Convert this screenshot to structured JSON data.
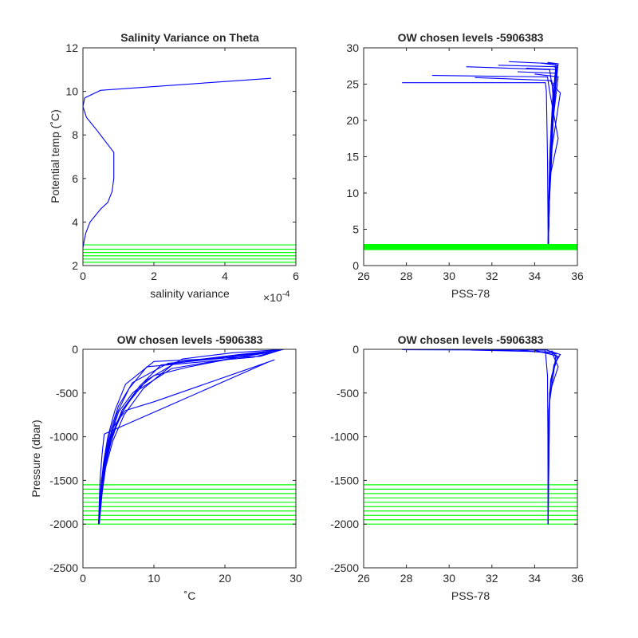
{
  "figure": {
    "background": "#ffffff",
    "axes_color": "#262626",
    "profile_color": "#0000ff",
    "level_color": "#00ff00"
  },
  "chart_data": [
    {
      "type": "line",
      "title": "Salinity Variance on Theta",
      "xlabel": "salinity variance",
      "ylabel": "Potential temp (˚C)",
      "xlim": [
        0,
        6
      ],
      "ylim": [
        2,
        12
      ],
      "xticks": [
        0,
        2,
        4,
        6
      ],
      "yticks": [
        2,
        4,
        6,
        8,
        10,
        12
      ],
      "x_exponent_label": "×10",
      "x_exponent_power": "-4",
      "series": [
        {
          "x": [
            5.3,
            0.5,
            0.05,
            0.0,
            0.1,
            0.4,
            0.87,
            0.87,
            0.82,
            0.7,
            0.5,
            0.2,
            0.08,
            0.03,
            0.0
          ],
          "y": [
            10.6,
            10.05,
            9.7,
            9.3,
            8.8,
            8.2,
            7.2,
            6.0,
            5.4,
            4.9,
            4.6,
            4.0,
            3.5,
            3.1,
            2.8
          ]
        }
      ],
      "levels": [
        2.15,
        2.3,
        2.45,
        2.6,
        2.75,
        2.95
      ]
    },
    {
      "type": "line",
      "title": "OW chosen levels -5906383",
      "xlabel": "PSS-78",
      "ylabel": "",
      "xlim": [
        26,
        36
      ],
      "ylim": [
        0,
        30
      ],
      "xticks": [
        26,
        28,
        30,
        32,
        34,
        36
      ],
      "yticks": [
        0,
        5,
        10,
        15,
        20,
        25,
        30
      ],
      "profiles": [
        {
          "x": [
            27.8,
            34.5,
            34.55,
            34.6,
            34.62,
            34.63
          ],
          "y": [
            25.2,
            25.2,
            24.0,
            15.0,
            8.0,
            3.0
          ]
        },
        {
          "x": [
            29.2,
            34.6,
            34.7,
            35.1,
            34.7,
            34.65,
            34.63
          ],
          "y": [
            26.2,
            26.0,
            24.0,
            17.5,
            12.0,
            6.0,
            3.0
          ]
        },
        {
          "x": [
            30.8,
            34.7,
            34.8,
            35.2,
            34.75,
            34.65,
            34.63
          ],
          "y": [
            27.4,
            27.0,
            25.0,
            23.8,
            15.0,
            6.0,
            3.0
          ]
        },
        {
          "x": [
            31.2,
            34.8,
            34.9,
            34.8,
            34.7,
            34.64
          ],
          "y": [
            25.9,
            25.5,
            22.0,
            16.0,
            10.0,
            3.0
          ]
        },
        {
          "x": [
            32.3,
            35.0,
            34.9,
            34.8,
            34.7,
            34.64
          ],
          "y": [
            27.6,
            27.4,
            24.0,
            18.0,
            10.0,
            3.0
          ]
        },
        {
          "x": [
            32.8,
            35.0,
            34.9,
            34.8,
            34.7,
            34.64
          ],
          "y": [
            28.1,
            27.8,
            24.5,
            19.0,
            10.0,
            3.0
          ]
        },
        {
          "x": [
            33.2,
            35.0,
            34.95,
            34.75,
            34.66,
            34.64
          ],
          "y": [
            26.7,
            26.5,
            23.0,
            17.0,
            9.0,
            3.0
          ]
        },
        {
          "x": [
            33.6,
            35.05,
            34.9,
            34.8,
            34.68,
            34.64
          ],
          "y": [
            27.2,
            27.0,
            22.5,
            15.0,
            8.0,
            3.0
          ]
        },
        {
          "x": [
            34.0,
            35.1,
            34.9,
            34.7,
            34.66,
            34.64
          ],
          "y": [
            26.4,
            26.0,
            21.0,
            14.0,
            7.0,
            3.0
          ]
        },
        {
          "x": [
            34.3,
            35.05,
            34.85,
            34.72,
            34.65,
            34.64
          ],
          "y": [
            27.9,
            27.6,
            23.5,
            16.0,
            8.0,
            3.0
          ]
        },
        {
          "x": [
            34.6,
            35.1,
            35.0,
            34.8,
            34.68,
            34.64
          ],
          "y": [
            28.0,
            27.8,
            25.0,
            19.0,
            9.0,
            3.0
          ]
        },
        {
          "x": [
            34.7,
            34.9,
            34.85,
            34.7,
            34.66,
            34.64
          ],
          "y": [
            25.5,
            25.0,
            22.0,
            14.0,
            7.0,
            3.0
          ]
        },
        {
          "x": [
            34.9,
            35.05,
            34.8,
            34.7,
            34.65,
            34.64
          ],
          "y": [
            27.5,
            27.0,
            20.0,
            13.0,
            6.0,
            3.0
          ]
        }
      ],
      "levels": [
        2.2,
        2.3,
        2.4,
        2.5,
        2.6,
        2.7,
        2.8,
        2.9
      ]
    },
    {
      "type": "line",
      "title": "OW chosen levels -5906383",
      "xlabel": "˚C",
      "ylabel": "Pressure (dbar)",
      "xlim": [
        0,
        30
      ],
      "ylim": [
        -2500,
        0
      ],
      "xticks": [
        0,
        10,
        20,
        30
      ],
      "yticks": [
        -2500,
        -2000,
        -1500,
        -1000,
        -500,
        0
      ],
      "profiles": [
        {
          "x": [
            28.0,
            25.0,
            10.0,
            6.0,
            4.5,
            3.5,
            2.9,
            2.5,
            2.2
          ],
          "y": [
            -5,
            -80,
            -140,
            -400,
            -700,
            -1000,
            -1300,
            -1600,
            -2000
          ]
        },
        {
          "x": [
            27.5,
            20.0,
            12.0,
            7.0,
            5.0,
            3.8,
            3.0,
            2.6,
            2.25
          ],
          "y": [
            -10,
            -100,
            -160,
            -380,
            -650,
            -950,
            -1250,
            -1550,
            -1980
          ]
        },
        {
          "x": [
            27.0,
            18.0,
            11.0,
            8.0,
            5.5,
            4.0,
            3.1,
            2.6,
            2.25
          ],
          "y": [
            -15,
            -110,
            -180,
            -420,
            -700,
            -1000,
            -1300,
            -1600,
            -1990
          ]
        },
        {
          "x": [
            28.2,
            22.0,
            13.0,
            8.5,
            5.8,
            4.2,
            3.2,
            2.7,
            2.3
          ],
          "y": [
            -5,
            -60,
            -150,
            -450,
            -750,
            -1050,
            -1350,
            -1650,
            -1995
          ]
        },
        {
          "x": [
            26.5,
            15.0,
            10.0,
            7.0,
            5.0,
            3.9,
            3.0,
            2.6,
            2.25
          ],
          "y": [
            -20,
            -200,
            -300,
            -500,
            -720,
            -1000,
            -1300,
            -1600,
            -1990
          ]
        },
        {
          "x": [
            27.8,
            24.0,
            9.0,
            6.5,
            4.8,
            3.7,
            3.0,
            2.5,
            2.2
          ],
          "y": [
            -10,
            -90,
            -200,
            -450,
            -730,
            -1030,
            -1330,
            -1630,
            -1995
          ]
        },
        {
          "x": [
            27.0,
            10.0,
            6.0,
            4.2,
            3.2,
            2.6,
            2.25
          ],
          "y": [
            -120,
            -600,
            -700,
            -900,
            -1200,
            -1500,
            -1990
          ]
        },
        {
          "x": [
            26.0,
            3.0,
            2.7,
            2.4,
            2.2
          ],
          "y": [
            -150,
            -970,
            -1200,
            -1500,
            -2000
          ]
        },
        {
          "x": [
            28.5,
            21.0,
            14.0,
            9.0,
            6.0,
            4.3,
            3.3,
            2.7,
            2.3
          ],
          "y": [
            0,
            -40,
            -110,
            -350,
            -650,
            -950,
            -1250,
            -1550,
            -1990
          ]
        },
        {
          "x": [
            27.2,
            19.0,
            12.5,
            7.5,
            5.2,
            4.0,
            3.1,
            2.6,
            2.25
          ],
          "y": [
            -25,
            -130,
            -220,
            -480,
            -760,
            -1050,
            -1350,
            -1650,
            -2000
          ]
        }
      ],
      "levels": [
        -1550,
        -1600,
        -1650,
        -1700,
        -1750,
        -1800,
        -1850,
        -1900,
        -1950,
        -2000
      ]
    },
    {
      "type": "line",
      "title": "OW chosen levels -5906383",
      "xlabel": "PSS-78",
      "ylabel": "",
      "xlim": [
        26,
        36
      ],
      "ylim": [
        -2500,
        0
      ],
      "xticks": [
        26,
        28,
        30,
        32,
        34,
        36
      ],
      "yticks": [
        -2500,
        -2000,
        -1500,
        -1000,
        -500,
        0
      ],
      "profiles": [
        {
          "x": [
            27.8,
            34.5,
            34.6,
            34.62,
            34.63
          ],
          "y": [
            -5,
            -10,
            -300,
            -1000,
            -2000
          ]
        },
        {
          "x": [
            31.0,
            34.8,
            35.1,
            34.7,
            34.63,
            34.63
          ],
          "y": [
            -8,
            -30,
            -200,
            -500,
            -1200,
            -2000
          ]
        },
        {
          "x": [
            33.0,
            35.0,
            34.9,
            34.7,
            34.63
          ],
          "y": [
            -5,
            -50,
            -250,
            -600,
            -2000
          ]
        },
        {
          "x": [
            34.0,
            35.1,
            34.8,
            34.66,
            34.63
          ],
          "y": [
            -10,
            -80,
            -300,
            -700,
            -2000
          ]
        },
        {
          "x": [
            34.5,
            35.2,
            34.9,
            34.7,
            34.63
          ],
          "y": [
            -3,
            -60,
            -180,
            -500,
            -2000
          ]
        },
        {
          "x": [
            34.8,
            35.05,
            34.75,
            34.65,
            34.63
          ],
          "y": [
            -15,
            -100,
            -350,
            -800,
            -2000
          ]
        }
      ],
      "levels": [
        -1550,
        -1600,
        -1650,
        -1700,
        -1750,
        -1800,
        -1850,
        -1900,
        -1950,
        -2000
      ]
    }
  ]
}
